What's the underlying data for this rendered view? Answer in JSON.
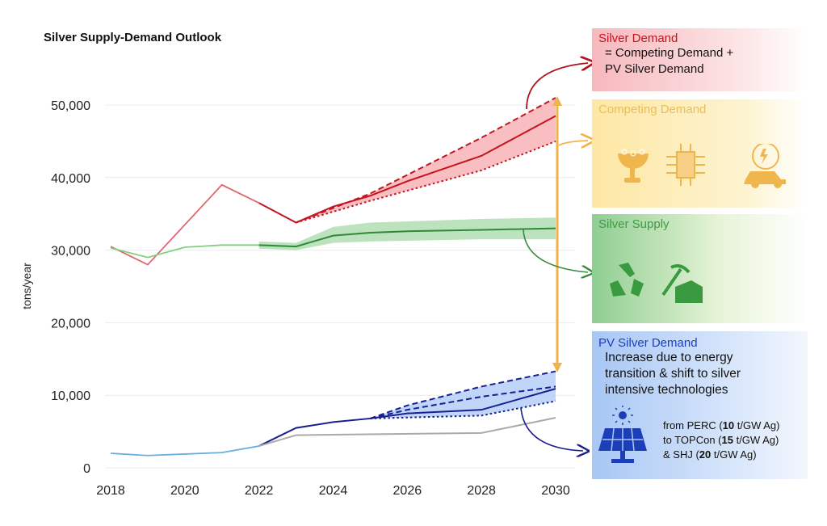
{
  "chart_data": {
    "type": "line",
    "title": "Silver Supply-Demand Outlook",
    "xlabel": "",
    "ylabel": "tons/year",
    "xlim": [
      2018,
      2030
    ],
    "ylim": [
      0,
      50000
    ],
    "x_ticks": [
      "2018",
      "2020",
      "2022",
      "2024",
      "2026",
      "2028",
      "2030"
    ],
    "y_ticks": [
      "0",
      "10,000",
      "20,000",
      "30,000",
      "40,000",
      "50,000"
    ],
    "grid": true,
    "series": [
      {
        "key": "demand_hist",
        "color": "#e06670",
        "style": "solid",
        "points": [
          [
            2018,
            30500
          ],
          [
            2019,
            28000
          ],
          [
            2021,
            39000
          ],
          [
            2022,
            36500
          ]
        ]
      },
      {
        "key": "demand",
        "color": "#c4141e",
        "style": "solid",
        "points": [
          [
            2022,
            36500
          ],
          [
            2023,
            33800
          ],
          [
            2024,
            36000
          ],
          [
            2025,
            37500
          ],
          [
            2026,
            39500
          ],
          [
            2028,
            43000
          ],
          [
            2030,
            48500
          ]
        ]
      },
      {
        "key": "demand_high",
        "color": "#c4141e",
        "style": "dashed",
        "points": [
          [
            2023,
            33800
          ],
          [
            2025,
            37800
          ],
          [
            2028,
            45500
          ],
          [
            2030,
            51000
          ]
        ]
      },
      {
        "key": "demand_low",
        "color": "#c4141e",
        "style": "dotted",
        "points": [
          [
            2023,
            33800
          ],
          [
            2025,
            36800
          ],
          [
            2028,
            41000
          ],
          [
            2030,
            45000
          ]
        ]
      },
      {
        "key": "supply_hist",
        "color": "#7fd17f",
        "style": "solid",
        "points": [
          [
            2018,
            30300
          ],
          [
            2019,
            29000
          ],
          [
            2020,
            30400
          ],
          [
            2021,
            30700
          ],
          [
            2022,
            30700
          ]
        ]
      },
      {
        "key": "supply",
        "color": "#2f8a35",
        "style": "solid",
        "points": [
          [
            2022,
            30700
          ],
          [
            2023,
            30500
          ],
          [
            2024,
            32000
          ],
          [
            2025,
            32400
          ],
          [
            2026,
            32600
          ],
          [
            2028,
            32800
          ],
          [
            2030,
            33000
          ]
        ]
      },
      {
        "key": "pv_hist",
        "color": "#6ab0de",
        "style": "solid",
        "points": [
          [
            2018,
            2000
          ],
          [
            2019,
            1700
          ],
          [
            2020,
            1900
          ],
          [
            2021,
            2100
          ],
          [
            2022,
            3000
          ]
        ]
      },
      {
        "key": "pv",
        "color": "#1a1f8f",
        "style": "solid",
        "points": [
          [
            2022,
            3000
          ],
          [
            2023,
            5500
          ],
          [
            2024,
            6300
          ],
          [
            2025,
            6800
          ],
          [
            2026,
            7500
          ],
          [
            2028,
            8000
          ],
          [
            2030,
            10900
          ]
        ]
      },
      {
        "key": "pv_high",
        "color": "#1a1f8f",
        "style": "dashed",
        "points": [
          [
            2025,
            6800
          ],
          [
            2026,
            8600
          ],
          [
            2028,
            11200
          ],
          [
            2030,
            13300
          ]
        ]
      },
      {
        "key": "pv_mid",
        "color": "#1a1f8f",
        "style": "dashed",
        "points": [
          [
            2025,
            6800
          ],
          [
            2026,
            8000
          ],
          [
            2028,
            9800
          ],
          [
            2030,
            11200
          ]
        ]
      },
      {
        "key": "pv_low",
        "color": "#1a1f8f",
        "style": "dotted",
        "points": [
          [
            2025,
            6800
          ],
          [
            2028,
            7200
          ],
          [
            2030,
            9200
          ]
        ]
      },
      {
        "key": "pv_baseline",
        "color": "#aaaaaa",
        "style": "solid",
        "points": [
          [
            2022,
            3000
          ],
          [
            2023,
            4500
          ],
          [
            2028,
            4800
          ],
          [
            2030,
            6900
          ]
        ]
      }
    ],
    "bands": [
      {
        "key": "demand_band",
        "color": "#f7a8ad",
        "upper": [
          [
            2023,
            33800
          ],
          [
            2025,
            37800
          ],
          [
            2028,
            45500
          ],
          [
            2030,
            51000
          ]
        ],
        "lower": [
          [
            2023,
            33800
          ],
          [
            2025,
            36800
          ],
          [
            2028,
            41000
          ],
          [
            2030,
            45000
          ]
        ]
      },
      {
        "key": "supply_band",
        "color": "#a6d8a8",
        "upper": [
          [
            2022,
            31200
          ],
          [
            2023,
            31000
          ],
          [
            2024,
            33200
          ],
          [
            2025,
            33800
          ],
          [
            2028,
            34300
          ],
          [
            2030,
            34500
          ]
        ],
        "lower": [
          [
            2022,
            30200
          ],
          [
            2023,
            30000
          ],
          [
            2024,
            31000
          ],
          [
            2025,
            31200
          ],
          [
            2028,
            31500
          ],
          [
            2030,
            31500
          ]
        ]
      },
      {
        "key": "pv_band",
        "color": "#a9c8f7",
        "upper": [
          [
            2025,
            6800
          ],
          [
            2026,
            8600
          ],
          [
            2028,
            11200
          ],
          [
            2030,
            13300
          ]
        ],
        "lower": [
          [
            2025,
            6800
          ],
          [
            2028,
            7200
          ],
          [
            2030,
            9200
          ]
        ]
      }
    ]
  },
  "panels": {
    "silver_demand": {
      "heading": "Silver Demand",
      "lines": [
        "= Competing Demand +",
        "PV Silver Demand"
      ],
      "color": "#c4141e"
    },
    "competing_demand": {
      "heading": "Competing Demand",
      "icons": [
        "jewelry-icon",
        "chip-icon",
        "ev-car-icon"
      ],
      "color": "#ecbd5a"
    },
    "silver_supply": {
      "heading": "Silver Supply",
      "icons": [
        "recycle-icon",
        "mining-icon"
      ],
      "color": "#3f9a45"
    },
    "pv_demand": {
      "heading": "PV Silver Demand",
      "lines": [
        "Increase due to energy",
        "transition & shift to silver",
        "intensive technologies"
      ],
      "tech": [
        {
          "pre": "from PERC (",
          "val": "10",
          "post": " t/GW Ag)"
        },
        {
          "pre": "to TOPCon (",
          "val": "15",
          "post": " t/GW Ag)"
        },
        {
          "pre": "& SHJ (",
          "val": "20",
          "post": " t/GW Ag)"
        }
      ],
      "icon": "solar-panel-icon",
      "color": "#1c3fb8"
    }
  },
  "arrow_color": "#f2b24a"
}
